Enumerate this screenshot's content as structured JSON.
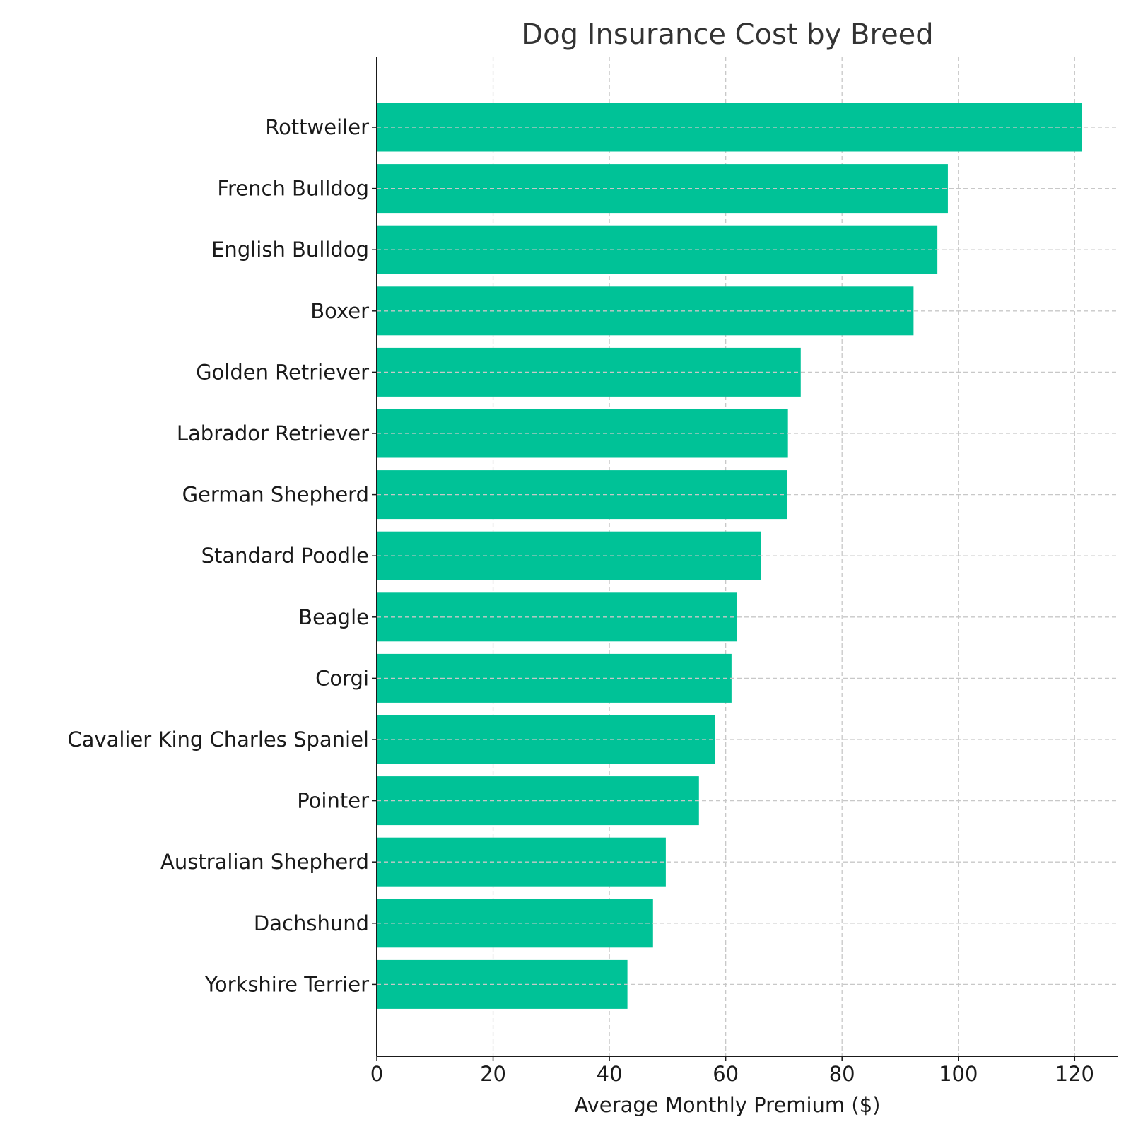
{
  "chart_data": {
    "type": "bar",
    "orientation": "horizontal",
    "title": "Dog Insurance Cost by Breed",
    "xlabel": "Average Monthly Premium ($)",
    "ylabel": "",
    "xlim": [
      0,
      127.5
    ],
    "xticks": [
      0,
      20,
      40,
      60,
      80,
      100,
      120
    ],
    "grid": true,
    "bar_color": "#00c297",
    "categories": [
      "Rottweiler",
      "French Bulldog",
      "English Bulldog",
      "Boxer",
      "Golden Retriever",
      "Labrador Retriever",
      "German Shepherd",
      "Standard Poodle",
      "Beagle",
      "Corgi",
      "Cavalier King Charles Spaniel",
      "Pointer",
      "Australian Shepherd",
      "Dachshund",
      "Yorkshire Terrier"
    ],
    "values": [
      121.3,
      98.2,
      96.4,
      92.3,
      72.9,
      70.7,
      70.6,
      66.0,
      61.9,
      61.0,
      58.2,
      55.4,
      49.7,
      47.5,
      43.1
    ]
  },
  "colors": {
    "text": "#1a1a1a",
    "title": "#333333",
    "grid": "#c8c8c8",
    "axis": "#1a1a1a"
  }
}
